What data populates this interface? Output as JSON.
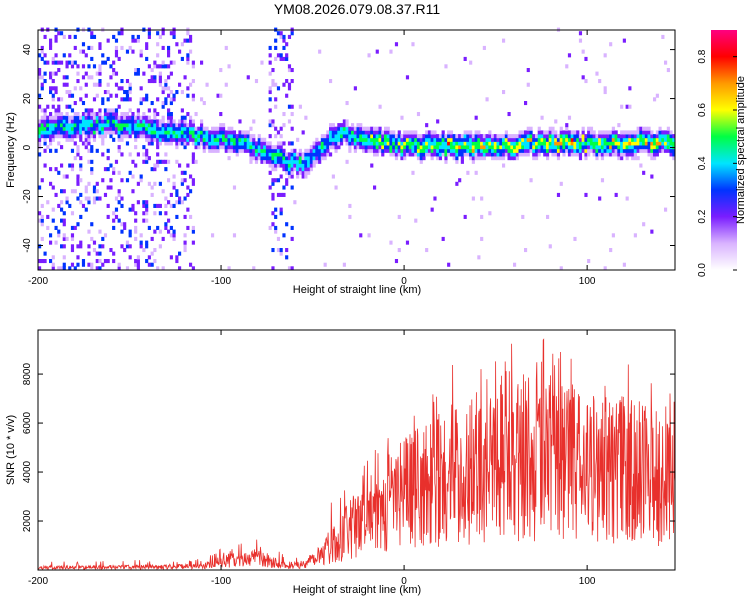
{
  "figure": {
    "title": "YM08.2026.079.08.37.R11"
  },
  "colors": {
    "line": "#e8302c",
    "axis": "#000000",
    "colormap": [
      "#ffffff",
      "#d9b3ff",
      "#7a1dff",
      "#0033ff",
      "#00e5ff",
      "#00ff44",
      "#ffff00",
      "#ff9900",
      "#ff0000",
      "#ff0080"
    ]
  },
  "chart_data": [
    {
      "type": "heatmap",
      "name": "spectrogram",
      "xlabel": "Height of straight line (km)",
      "ylabel": "Frequency (Hz)",
      "xlim": [
        -200,
        148
      ],
      "ylim": [
        -50,
        48
      ],
      "xticks": [
        -200,
        -100,
        0,
        100
      ],
      "xtick_labels": [
        "-200",
        "-100",
        "0",
        "100"
      ],
      "yticks": [
        -40,
        -20,
        0,
        20,
        40
      ],
      "ytick_labels": [
        "-40",
        "-20",
        "0",
        "20",
        "40"
      ],
      "colorbar": {
        "label": "Normalized spectral amplitude",
        "range": [
          0,
          0.9
        ],
        "ticks": [
          0.0,
          0.2,
          0.4,
          0.6,
          0.8
        ],
        "tick_labels": [
          "0.0",
          "0.2",
          "0.4",
          "0.6",
          "0.8"
        ]
      },
      "ridge": {
        "x": [
          -200,
          -180,
          -160,
          -140,
          -120,
          -100,
          -85,
          -75,
          -65,
          -55,
          -48,
          -42,
          -35,
          -25,
          -15,
          -5,
          0,
          20,
          50,
          80,
          110,
          148
        ],
        "freq": [
          7,
          8,
          9,
          7,
          5,
          3,
          0,
          -3,
          -6,
          -8,
          -3,
          2,
          5,
          3,
          2,
          0,
          0,
          0,
          0,
          1,
          1,
          1
        ]
      },
      "noise_bands": [
        {
          "from": -200,
          "to": -115,
          "level": 0.35
        },
        {
          "from": -75,
          "to": -62,
          "level": 0.3
        }
      ]
    },
    {
      "type": "line",
      "name": "snr",
      "xlabel": "Height of straight line (km)",
      "ylabel": "SNR (10 * v/v)",
      "xlim": [
        -200,
        148
      ],
      "ylim": [
        0,
        9800
      ],
      "xticks": [
        -200,
        -100,
        0,
        100
      ],
      "xtick_labels": [
        "-200",
        "-100",
        "0",
        "100"
      ],
      "yticks": [
        2000,
        4000,
        6000,
        8000
      ],
      "ytick_labels": [
        "2000",
        "4000",
        "6000",
        "8000"
      ],
      "envelope": {
        "x": [
          -200,
          -150,
          -110,
          -100,
          -90,
          -80,
          -70,
          -62,
          -55,
          -45,
          -35,
          -25,
          -15,
          -5,
          5,
          20,
          35,
          50,
          70,
          90,
          110,
          130,
          148
        ],
        "mean": [
          100,
          120,
          150,
          350,
          420,
          500,
          300,
          150,
          250,
          700,
          1300,
          1900,
          2500,
          3000,
          3300,
          3700,
          4100,
          4400,
          4500,
          4300,
          4100,
          4000,
          3800
        ],
        "max": [
          350,
          420,
          450,
          900,
          1100,
          1300,
          900,
          350,
          900,
          2200,
          3600,
          4800,
          5600,
          6100,
          7000,
          8000,
          9000,
          9300,
          9700,
          9300,
          8600,
          8400,
          7000
        ]
      }
    }
  ]
}
